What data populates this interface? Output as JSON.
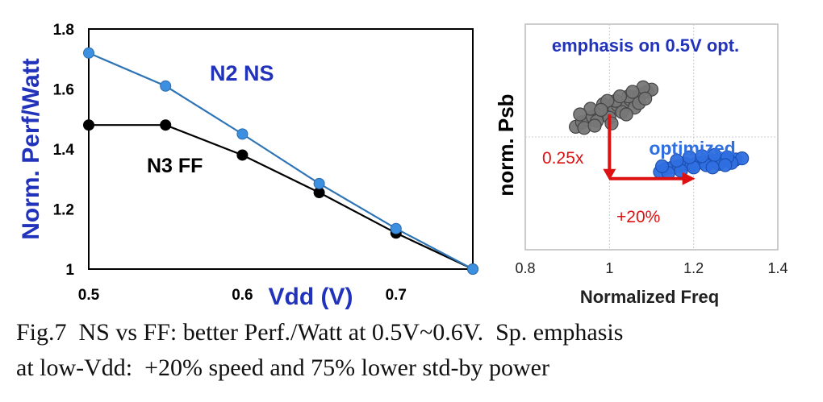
{
  "chart_data": [
    {
      "type": "line",
      "title": "",
      "xlabel": "Vdd (V)",
      "ylabel": "Norm. Perf/Watt",
      "xlim": [
        0.5,
        0.75
      ],
      "ylim": [
        1.0,
        1.8
      ],
      "x_ticks": [
        "0.5",
        "0.6",
        "0.7"
      ],
      "x_tick_values": [
        0.5,
        0.6,
        0.7
      ],
      "y_ticks": [
        "1",
        "1.2",
        "1.4",
        "1.6",
        "1.8"
      ],
      "y_tick_values": [
        1.0,
        1.2,
        1.4,
        1.6,
        1.8
      ],
      "grid": false,
      "series": [
        {
          "name": "N2 NS",
          "color": "#2e75b6",
          "marker_color": "#3d8fe0",
          "x": [
            0.5,
            0.55,
            0.6,
            0.65,
            0.7,
            0.75
          ],
          "values": [
            1.72,
            1.61,
            1.45,
            1.285,
            1.135,
            1.0
          ]
        },
        {
          "name": "N3 FF",
          "color": "#000000",
          "marker_color": "#000000",
          "x": [
            0.5,
            0.55,
            0.6,
            0.65,
            0.7,
            0.75
          ],
          "values": [
            1.48,
            1.48,
            1.38,
            1.255,
            1.12,
            1.0
          ]
        }
      ],
      "label_colors": {
        "n2": "#2233bb",
        "n3": "#000000",
        "axis": "#2233bb"
      }
    },
    {
      "type": "scatter",
      "title": "emphasis on 0.5V opt.",
      "xlabel": "Normalized Freq",
      "ylabel": "norm. Psb",
      "xlim": [
        0.8,
        1.4
      ],
      "ylim": [
        0,
        1
      ],
      "x_ticks": [
        "0.8",
        "1",
        "1.2",
        "1.4"
      ],
      "x_tick_values": [
        0.8,
        1.0,
        1.2,
        1.4
      ],
      "grid": true,
      "series": [
        {
          "name": "",
          "color": "#777777",
          "x": [
            0.92,
            0.935,
            0.95,
            0.96,
            0.975,
            0.99,
            1.0,
            1.01,
            1.02,
            1.035,
            1.05,
            1.06,
            1.075,
            1.09,
            1.1,
            0.94,
            0.97,
            1.0,
            1.03,
            1.06,
            0.955,
            0.985,
            1.015,
            1.045,
            1.08,
            0.93,
            0.965,
            0.995,
            1.025,
            1.07,
            1.005,
            1.04,
            0.98,
            1.055,
            1.085
          ],
          "values": [
            0.545,
            0.565,
            0.575,
            0.59,
            0.605,
            0.6,
            0.62,
            0.635,
            0.64,
            0.655,
            0.665,
            0.675,
            0.69,
            0.7,
            0.71,
            0.54,
            0.57,
            0.585,
            0.61,
            0.63,
            0.625,
            0.645,
            0.66,
            0.68,
            0.72,
            0.6,
            0.55,
            0.66,
            0.68,
            0.65,
            0.56,
            0.6,
            0.62,
            0.7,
            0.67
          ]
        },
        {
          "name": "optimized",
          "color": "#2f6fe0",
          "x": [
            1.12,
            1.135,
            1.15,
            1.165,
            1.18,
            1.195,
            1.21,
            1.225,
            1.24,
            1.255,
            1.27,
            1.285,
            1.3,
            1.315,
            1.14,
            1.17,
            1.2,
            1.23,
            1.26,
            1.29,
            1.16,
            1.19,
            1.22,
            1.25,
            1.28,
            1.125,
            1.245,
            1.275
          ],
          "values": [
            0.345,
            0.36,
            0.365,
            0.37,
            0.38,
            0.375,
            0.385,
            0.39,
            0.39,
            0.395,
            0.4,
            0.395,
            0.4,
            0.405,
            0.34,
            0.35,
            0.365,
            0.375,
            0.38,
            0.385,
            0.395,
            0.41,
            0.415,
            0.42,
            0.41,
            0.37,
            0.365,
            0.375
          ]
        }
      ],
      "annotations": [
        {
          "text": "optimized",
          "color": "#2f6fe0"
        },
        {
          "text": "0.25x",
          "color": "#dd1111"
        },
        {
          "text": "+20%",
          "color": "#dd1111"
        }
      ],
      "arrow_color": "#dd1111",
      "title_color": "#2233bb"
    }
  ],
  "caption": {
    "line1": "Fig.7  NS vs FF: better Perf./Watt at 0.5V~0.6V.  Sp. emphasis",
    "line2": "at low-Vdd:  +20% speed and 75% lower std-by power"
  }
}
